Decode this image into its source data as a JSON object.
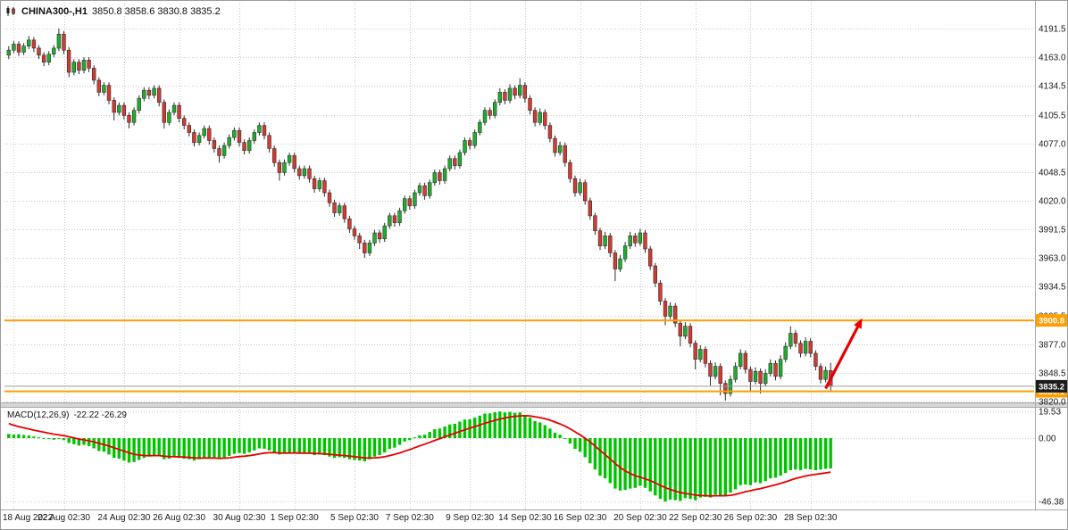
{
  "header": {
    "symbol": "CHINA300-,H1",
    "ohlc": "3850.8 3858.6 3830.8 3835.2"
  },
  "macd_label": {
    "name": "MACD(12,26,9)",
    "values": "-22.22 -26.29"
  },
  "colors": {
    "up": "#1fae2c",
    "down": "#d23a32",
    "outline": "#2e2e2e",
    "grid": "#c9c9c9",
    "arrow": "#e60000",
    "macd_bar": "#00c400",
    "macd_signal": "#e60000",
    "axis_text": "#1a1a1a",
    "badge_current_bg": "#1c1c1c",
    "badge_text": "#ffffff",
    "level_orange": "#ff9e00"
  },
  "chart_data": {
    "type": "candlestick",
    "title": "CHINA300-,H1",
    "symbol": "CHINA300-",
    "timeframe": "H1",
    "grid": true,
    "price_axis": {
      "values": [
        4191.5,
        4163.0,
        4134.5,
        4105.5,
        4077.0,
        4048.5,
        4020.0,
        3991.5,
        3963.0,
        3934.5,
        3905.5,
        3877.0,
        3848.5,
        3820.0
      ],
      "labels": [
        "4191.5",
        "4163.0",
        "4134.5",
        "4105.5",
        "4077.0",
        "4048.5",
        "4020.0",
        "3991.5",
        "3963.0",
        "3934.5",
        "3905.5",
        "3877.0",
        "3848.5",
        "3820.0"
      ]
    },
    "time_axis": {
      "labels": [
        "18 Aug 2022",
        "22 Aug 02:30",
        "24 Aug 02:30",
        "26 Aug 02:30",
        "30 Aug 02:30",
        "1 Sep 02:30",
        "5 Sep 02:30",
        "7 Sep 02:30",
        "9 Sep 02:30",
        "14 Sep 02:30",
        "16 Sep 02:30",
        "20 Sep 02:30",
        "22 Sep 02:30",
        "26 Sep 02:30",
        "28 Sep 02:30"
      ],
      "indices": [
        1,
        11,
        23,
        34,
        46,
        57,
        69,
        80,
        92,
        103,
        114,
        126,
        137,
        148,
        160
      ]
    },
    "levels": [
      {
        "value": 3900.8,
        "label": "3900.8",
        "color": "#ff9e00",
        "role": "resistance"
      },
      {
        "value": 3830.1,
        "label": "3830.1",
        "color": "#ff9e00",
        "role": "support"
      }
    ],
    "current_price": {
      "value": 3835.2,
      "label": "3835.2"
    },
    "arrow": {
      "from_index": 163,
      "from_price": 3833,
      "to_index": 170.3,
      "to_price": 3903,
      "color": "#e60000"
    },
    "candles": [
      [
        4165,
        4174,
        4161,
        4170
      ],
      [
        4170,
        4179,
        4167,
        4176
      ],
      [
        4176,
        4179,
        4164,
        4168
      ],
      [
        4168,
        4177,
        4165,
        4174
      ],
      [
        4174,
        4184,
        4171,
        4180
      ],
      [
        4180,
        4183,
        4168,
        4172
      ],
      [
        4172,
        4175,
        4161,
        4165
      ],
      [
        4165,
        4168,
        4154,
        4158
      ],
      [
        4158,
        4169,
        4155,
        4166
      ],
      [
        4166,
        4175,
        4163,
        4172
      ],
      [
        4172,
        4191.5,
        4169,
        4186
      ],
      [
        4186,
        4189,
        4166,
        4170
      ],
      [
        4170,
        4173,
        4143,
        4148
      ],
      [
        4148,
        4161,
        4145,
        4158
      ],
      [
        4158,
        4161,
        4146,
        4150
      ],
      [
        4150,
        4163,
        4147,
        4160
      ],
      [
        4160,
        4163,
        4148,
        4152
      ],
      [
        4152,
        4155,
        4136,
        4140
      ],
      [
        4140,
        4143,
        4124,
        4128
      ],
      [
        4128,
        4138,
        4125,
        4135
      ],
      [
        4135,
        4138,
        4116,
        4120
      ],
      [
        4120,
        4123,
        4100,
        4108
      ],
      [
        4108,
        4118,
        4105,
        4115
      ],
      [
        4115,
        4118,
        4101,
        4105
      ],
      [
        4105,
        4108,
        4092,
        4098
      ],
      [
        4098,
        4113,
        4095,
        4110
      ],
      [
        4110,
        4125,
        4107,
        4122
      ],
      [
        4122,
        4133,
        4119,
        4130
      ],
      [
        4130,
        4133,
        4121,
        4125
      ],
      [
        4125,
        4135,
        4122,
        4132
      ],
      [
        4132,
        4135,
        4114,
        4118
      ],
      [
        4118,
        4121,
        4092,
        4098
      ],
      [
        4098,
        4111,
        4095,
        4108
      ],
      [
        4108,
        4118,
        4105,
        4115
      ],
      [
        4115,
        4118,
        4098,
        4102
      ],
      [
        4102,
        4105,
        4091,
        4095
      ],
      [
        4095,
        4098,
        4084,
        4088
      ],
      [
        4088,
        4091,
        4074,
        4078
      ],
      [
        4078,
        4088,
        4075,
        4085
      ],
      [
        4085,
        4095,
        4082,
        4092
      ],
      [
        4092,
        4095,
        4076,
        4080
      ],
      [
        4080,
        4083,
        4068,
        4072
      ],
      [
        4072,
        4075,
        4058,
        4065
      ],
      [
        4065,
        4078,
        4062,
        4075
      ],
      [
        4075,
        4086,
        4072,
        4083
      ],
      [
        4083,
        4093,
        4080,
        4090
      ],
      [
        4090,
        4093,
        4074,
        4078
      ],
      [
        4078,
        4081,
        4066,
        4070
      ],
      [
        4070,
        4083,
        4067,
        4080
      ],
      [
        4080,
        4091,
        4077,
        4088
      ],
      [
        4088,
        4098,
        4085,
        4095
      ],
      [
        4095,
        4098,
        4081,
        4085
      ],
      [
        4085,
        4088,
        4068,
        4072
      ],
      [
        4072,
        4075,
        4054,
        4058
      ],
      [
        4058,
        4061,
        4040,
        4048
      ],
      [
        4048,
        4061,
        4045,
        4058
      ],
      [
        4058,
        4068,
        4055,
        4065
      ],
      [
        4065,
        4068,
        4048,
        4052
      ],
      [
        4052,
        4055,
        4041,
        4045
      ],
      [
        4045,
        4055,
        4042,
        4052
      ],
      [
        4052,
        4055,
        4038,
        4042
      ],
      [
        4042,
        4045,
        4028,
        4032
      ],
      [
        4032,
        4043,
        4029,
        4040
      ],
      [
        4040,
        4043,
        4024,
        4028
      ],
      [
        4028,
        4031,
        4014,
        4018
      ],
      [
        4018,
        4021,
        4004,
        4008
      ],
      [
        4008,
        4018,
        4005,
        4015
      ],
      [
        4015,
        4018,
        3998,
        4002
      ],
      [
        4002,
        4005,
        3988,
        3992
      ],
      [
        3992,
        3995,
        3981,
        3985
      ],
      [
        3985,
        3988,
        3972,
        3978
      ],
      [
        3978,
        3981,
        3963,
        3968
      ],
      [
        3968,
        3981,
        3965,
        3978
      ],
      [
        3978,
        3991,
        3975,
        3988
      ],
      [
        3988,
        3991,
        3978,
        3982
      ],
      [
        3982,
        3998,
        3979,
        3995
      ],
      [
        3995,
        4008,
        3992,
        4005
      ],
      [
        4005,
        4008,
        3994,
        3998
      ],
      [
        3998,
        4013,
        3995,
        4010
      ],
      [
        4010,
        4025,
        4007,
        4022
      ],
      [
        4022,
        4025,
        4011,
        4015
      ],
      [
        4015,
        4031,
        4012,
        4028
      ],
      [
        4028,
        4038,
        4025,
        4035
      ],
      [
        4035,
        4038,
        4021,
        4025
      ],
      [
        4025,
        4041,
        4022,
        4038
      ],
      [
        4038,
        4051,
        4035,
        4048
      ],
      [
        4048,
        4051,
        4036,
        4040
      ],
      [
        4040,
        4055,
        4037,
        4052
      ],
      [
        4052,
        4065,
        4049,
        4062
      ],
      [
        4062,
        4065,
        4051,
        4055
      ],
      [
        4055,
        4071,
        4052,
        4068
      ],
      [
        4068,
        4083,
        4065,
        4080
      ],
      [
        4080,
        4083,
        4071,
        4075
      ],
      [
        4075,
        4091,
        4072,
        4088
      ],
      [
        4088,
        4101,
        4085,
        4098
      ],
      [
        4098,
        4113,
        4095,
        4110
      ],
      [
        4110,
        4113,
        4101,
        4105
      ],
      [
        4105,
        4121,
        4102,
        4118
      ],
      [
        4118,
        4132,
        4115,
        4128
      ],
      [
        4128,
        4131,
        4116,
        4120
      ],
      [
        4120,
        4136,
        4117,
        4132
      ],
      [
        4132,
        4135,
        4121,
        4125
      ],
      [
        4125,
        4142,
        4122,
        4135
      ],
      [
        4135,
        4138,
        4118,
        4122
      ],
      [
        4122,
        4125,
        4106,
        4110
      ],
      [
        4110,
        4113,
        4094,
        4098
      ],
      [
        4098,
        4112,
        4095,
        4108
      ],
      [
        4108,
        4111,
        4091,
        4095
      ],
      [
        4095,
        4098,
        4078,
        4082
      ],
      [
        4082,
        4085,
        4064,
        4068
      ],
      [
        4068,
        4079,
        4065,
        4075
      ],
      [
        4075,
        4078,
        4054,
        4058
      ],
      [
        4058,
        4061,
        4038,
        4042
      ],
      [
        4042,
        4045,
        4024,
        4028
      ],
      [
        4028,
        4042,
        4025,
        4038
      ],
      [
        4038,
        4041,
        4016,
        4020
      ],
      [
        4020,
        4023,
        4001,
        4005
      ],
      [
        4005,
        4008,
        3986,
        3990
      ],
      [
        3990,
        3993,
        3971,
        3975
      ],
      [
        3975,
        3989,
        3972,
        3985
      ],
      [
        3985,
        3988,
        3964,
        3968
      ],
      [
        3968,
        3971,
        3940,
        3952
      ],
      [
        3952,
        3966,
        3949,
        3962
      ],
      [
        3962,
        3979,
        3959,
        3975
      ],
      [
        3975,
        3989,
        3972,
        3985
      ],
      [
        3985,
        3988,
        3974,
        3978
      ],
      [
        3978,
        3992,
        3975,
        3988
      ],
      [
        3988,
        3991,
        3968,
        3972
      ],
      [
        3972,
        3975,
        3951,
        3955
      ],
      [
        3955,
        3958,
        3934,
        3938
      ],
      [
        3938,
        3941,
        3916,
        3920
      ],
      [
        3920,
        3923,
        3896,
        3905
      ],
      [
        3905,
        3919,
        3902,
        3915
      ],
      [
        3915,
        3918,
        3894,
        3898
      ],
      [
        3898,
        3901,
        3875,
        3885
      ],
      [
        3885,
        3899,
        3882,
        3895
      ],
      [
        3895,
        3898,
        3874,
        3878
      ],
      [
        3878,
        3881,
        3852,
        3862
      ],
      [
        3862,
        3876,
        3859,
        3872
      ],
      [
        3872,
        3875,
        3854,
        3858
      ],
      [
        3858,
        3861,
        3836,
        3845
      ],
      [
        3845,
        3859,
        3842,
        3855
      ],
      [
        3855,
        3858,
        3826,
        3838
      ],
      [
        3838,
        3841,
        3821,
        3828
      ],
      [
        3828,
        3846,
        3825,
        3842
      ],
      [
        3842,
        3859,
        3839,
        3855
      ],
      [
        3855,
        3872,
        3852,
        3868
      ],
      [
        3868,
        3871,
        3848,
        3852
      ],
      [
        3852,
        3855,
        3830,
        3840
      ],
      [
        3840,
        3854,
        3837,
        3850
      ],
      [
        3850,
        3853,
        3828,
        3838
      ],
      [
        3838,
        3852,
        3835,
        3848
      ],
      [
        3848,
        3862,
        3845,
        3858
      ],
      [
        3858,
        3861,
        3841,
        3845
      ],
      [
        3845,
        3866,
        3842,
        3862
      ],
      [
        3862,
        3879,
        3859,
        3875
      ],
      [
        3875,
        3895,
        3872,
        3888
      ],
      [
        3888,
        3891,
        3874,
        3878
      ],
      [
        3878,
        3881,
        3864,
        3868
      ],
      [
        3868,
        3884,
        3865,
        3880
      ],
      [
        3880,
        3883,
        3864,
        3868
      ],
      [
        3868,
        3871,
        3851,
        3855
      ],
      [
        3855,
        3858,
        3838,
        3842
      ],
      [
        3842,
        3855,
        3839,
        3851
      ],
      [
        3850.8,
        3858.6,
        3830.8,
        3835.2
      ]
    ],
    "macd": {
      "axis_values": [
        19.53,
        0,
        -46.38
      ],
      "axis_labels": [
        "19.53",
        "0.00",
        "-46.38"
      ],
      "signal_seed": 12.0,
      "signal_smoothing": 0.15,
      "histogram": [
        3.0,
        2.5,
        2.8,
        2.2,
        1.8,
        1.2,
        0.6,
        0.1,
        -0.5,
        -1.2,
        -0.6,
        -1.5,
        -3.5,
        -4.5,
        -5.5,
        -5.0,
        -5.8,
        -7.5,
        -9.5,
        -10.0,
        -12.0,
        -14.5,
        -15.0,
        -16.5,
        -18.0,
        -17.5,
        -16.0,
        -14.5,
        -13.5,
        -12.5,
        -13.0,
        -15.5,
        -15.0,
        -14.0,
        -14.5,
        -15.0,
        -15.5,
        -16.5,
        -15.5,
        -14.0,
        -14.5,
        -15.0,
        -15.5,
        -14.5,
        -13.0,
        -11.5,
        -11.0,
        -11.5,
        -10.5,
        -9.0,
        -7.5,
        -7.8,
        -9.0,
        -10.5,
        -12.0,
        -11.5,
        -10.5,
        -10.8,
        -11.5,
        -11.0,
        -11.5,
        -12.5,
        -12.0,
        -12.5,
        -13.5,
        -14.5,
        -14.0,
        -14.5,
        -15.5,
        -16.0,
        -16.5,
        -17.0,
        -15.5,
        -13.5,
        -12.5,
        -10.5,
        -8.0,
        -7.0,
        -5.0,
        -2.5,
        -1.5,
        0.5,
        2.0,
        2.5,
        4.5,
        6.5,
        7.0,
        8.5,
        10.0,
        10.5,
        12.0,
        13.5,
        13.8,
        15.0,
        16.5,
        18.0,
        18.2,
        19.0,
        19.5,
        18.8,
        19.2,
        18.5,
        18.8,
        17.0,
        15.0,
        12.5,
        11.5,
        9.5,
        7.0,
        4.0,
        2.5,
        -0.5,
        -4.0,
        -8.0,
        -10.0,
        -14.0,
        -18.5,
        -23.0,
        -27.5,
        -29.5,
        -33.0,
        -37.0,
        -38.5,
        -38.0,
        -37.0,
        -36.5,
        -35.0,
        -36.5,
        -39.0,
        -42.0,
        -44.5,
        -46.4,
        -45.0,
        -45.5,
        -46.0,
        -44.0,
        -44.5,
        -45.5,
        -43.5,
        -43.0,
        -43.5,
        -41.5,
        -42.0,
        -42.5,
        -40.0,
        -37.5,
        -34.5,
        -34.0,
        -34.5,
        -32.5,
        -33.0,
        -31.5,
        -29.5,
        -29.0,
        -27.5,
        -25.5,
        -23.5,
        -23.0,
        -23.5,
        -22.5,
        -23.0,
        -23.5,
        -23.0,
        -22.5,
        -22.2
      ]
    }
  }
}
